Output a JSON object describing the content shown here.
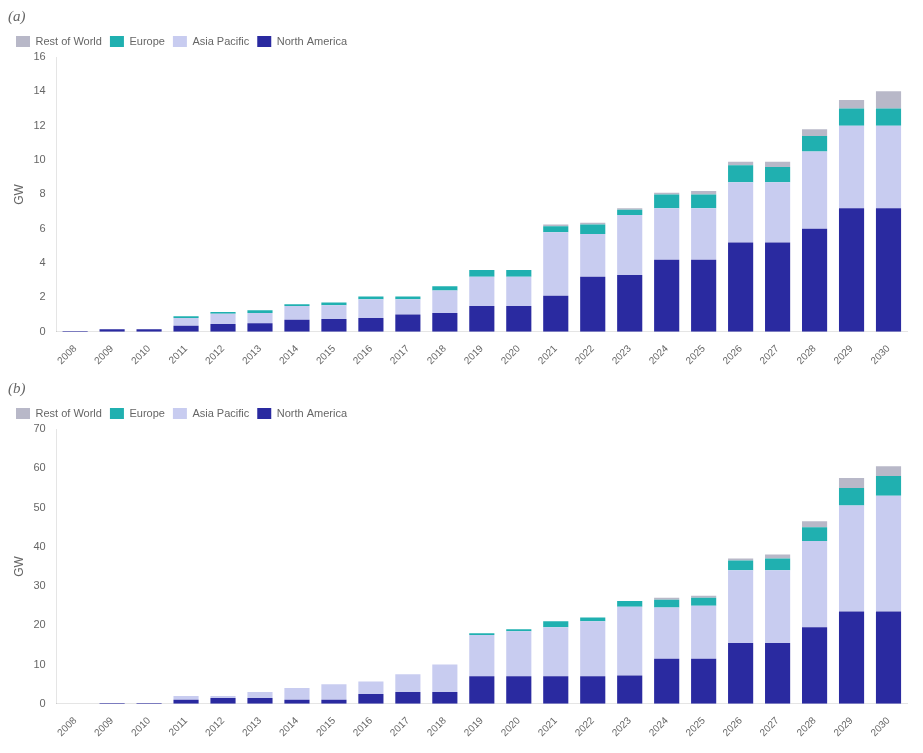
{
  "chart_data": [
    {
      "type": "bar",
      "title": "(a)",
      "ylabel": "GW",
      "categories": [
        "2008",
        "2009",
        "2010",
        "2011",
        "2012",
        "2013",
        "2014",
        "2015",
        "2016",
        "2017",
        "2018",
        "2019",
        "2020",
        "2021",
        "2022",
        "2023",
        "2024",
        "2025",
        "2026",
        "2027",
        "2028",
        "2029",
        "2030"
      ],
      "series": [
        {
          "name": "North America",
          "color": "#2a2aa0",
          "values": [
            0.05,
            0.15,
            0.15,
            0.35,
            0.45,
            0.5,
            0.7,
            0.75,
            0.8,
            1.0,
            1.1,
            1.5,
            1.5,
            2.1,
            3.2,
            3.3,
            4.2,
            4.2,
            5.2,
            5.2,
            6.0,
            7.2,
            7.2
          ]
        },
        {
          "name": "Asia Pacific",
          "color": "#c8ccf0",
          "values": [
            0.0,
            0.0,
            0.0,
            0.45,
            0.6,
            0.6,
            0.8,
            0.8,
            1.1,
            0.9,
            1.3,
            1.7,
            1.7,
            3.7,
            2.5,
            3.5,
            3.0,
            3.0,
            3.5,
            3.5,
            4.5,
            4.8,
            4.8
          ]
        },
        {
          "name": "Europe",
          "color": "#20b0b0",
          "values": [
            0.0,
            0.0,
            0.0,
            0.1,
            0.1,
            0.15,
            0.1,
            0.15,
            0.15,
            0.15,
            0.25,
            0.4,
            0.4,
            0.35,
            0.55,
            0.3,
            0.8,
            0.8,
            1.0,
            0.9,
            0.9,
            1.0,
            1.0
          ]
        },
        {
          "name": "Rest of World",
          "color": "#b8b8c8",
          "values": [
            0.0,
            0.0,
            0.0,
            0.0,
            0.0,
            0.0,
            0.0,
            0.0,
            0.0,
            0.0,
            0.0,
            0.0,
            0.0,
            0.1,
            0.1,
            0.1,
            0.1,
            0.2,
            0.2,
            0.3,
            0.4,
            0.5,
            1.0
          ]
        }
      ],
      "ylim": [
        0,
        16
      ],
      "yticks": [
        0,
        2,
        4,
        6,
        8,
        10,
        12,
        14,
        16
      ],
      "stacked": true,
      "grid": false,
      "legend": "upper left"
    },
    {
      "type": "bar",
      "title": "(b)",
      "ylabel": "GW",
      "categories": [
        "2008",
        "2009",
        "2010",
        "2011",
        "2012",
        "2013",
        "2014",
        "2015",
        "2016",
        "2017",
        "2018",
        "2019",
        "2020",
        "2021",
        "2022",
        "2023",
        "2024",
        "2025",
        "2026",
        "2027",
        "2028",
        "2029",
        "2030"
      ],
      "series": [
        {
          "name": "North America",
          "color": "#2a2aa0",
          "values": [
            0.0,
            0.2,
            0.2,
            1.0,
            1.5,
            1.5,
            1.0,
            1.0,
            2.5,
            3.0,
            3.0,
            7.0,
            7.0,
            7.0,
            7.0,
            7.2,
            11.5,
            11.5,
            15.5,
            15.5,
            19.5,
            23.5,
            23.5
          ]
        },
        {
          "name": "Asia Pacific",
          "color": "#c8ccf0",
          "values": [
            0.0,
            0.0,
            0.0,
            1.0,
            0.5,
            1.5,
            3.0,
            4.0,
            3.2,
            4.5,
            7.0,
            10.5,
            11.5,
            12.5,
            14.0,
            17.5,
            13.0,
            13.5,
            18.5,
            18.5,
            22.0,
            27.0,
            29.5
          ]
        },
        {
          "name": "Europe",
          "color": "#20b0b0",
          "values": [
            0.0,
            0.0,
            0.0,
            0.0,
            0.0,
            0.0,
            0.0,
            0.0,
            0.0,
            0.0,
            0.0,
            0.5,
            0.5,
            1.5,
            1.0,
            1.5,
            2.0,
            2.0,
            2.5,
            3.0,
            3.5,
            4.5,
            5.0
          ]
        },
        {
          "name": "Rest of World",
          "color": "#b8b8c8",
          "values": [
            0.0,
            0.0,
            0.0,
            0.0,
            0.0,
            0.0,
            0.0,
            0.0,
            0.0,
            0.0,
            0.0,
            0.0,
            0.0,
            0.0,
            0.0,
            0.0,
            0.5,
            0.5,
            0.5,
            1.0,
            1.5,
            2.5,
            2.5
          ]
        }
      ],
      "ylim": [
        0,
        70
      ],
      "yticks": [
        0,
        10,
        20,
        30,
        40,
        50,
        60,
        70
      ],
      "stacked": true,
      "grid": false,
      "legend": "upper left"
    }
  ]
}
